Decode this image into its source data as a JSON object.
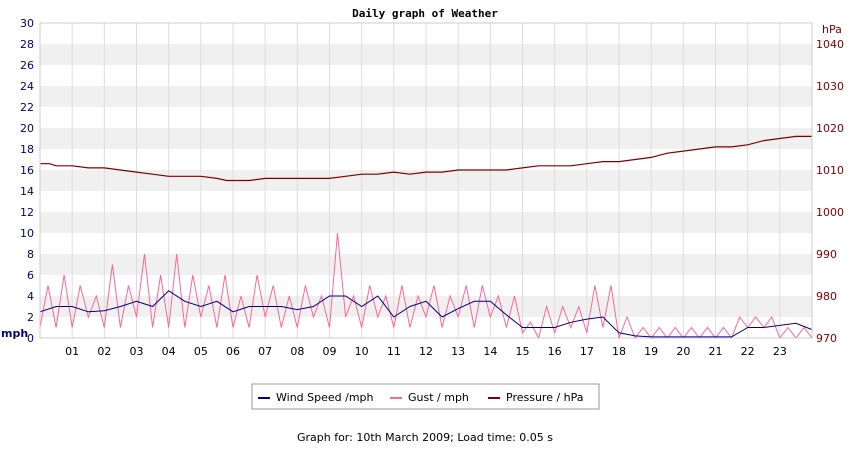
{
  "chart_data": {
    "type": "line",
    "title": "Daily graph of Weather",
    "y_left": {
      "label": "mph",
      "ylim": [
        0,
        30
      ],
      "ticks": [
        0,
        2,
        4,
        6,
        8,
        10,
        12,
        14,
        16,
        18,
        20,
        22,
        24,
        26,
        28,
        30
      ],
      "color": "#000080"
    },
    "y_right": {
      "label": "hPa",
      "ylim": [
        970,
        1045
      ],
      "ticks": [
        970,
        980,
        990,
        1000,
        1010,
        1020,
        1030,
        1040
      ],
      "color": "#800000"
    },
    "x": {
      "ticks": [
        "01",
        "02",
        "03",
        "04",
        "05",
        "06",
        "07",
        "08",
        "09",
        "10",
        "11",
        "12",
        "13",
        "14",
        "15",
        "16",
        "17",
        "18",
        "19",
        "20",
        "21",
        "22",
        "23"
      ],
      "xlim": [
        0,
        24
      ],
      "unit": "hour"
    },
    "grid": true,
    "legend_position": "bottom",
    "series": [
      {
        "name": "Wind Speed /mph",
        "axis": "left",
        "color": "#000080",
        "x": [
          0,
          0.5,
          1,
          1.5,
          2,
          2.5,
          3,
          3.5,
          4,
          4.5,
          5,
          5.5,
          6,
          6.5,
          7,
          7.5,
          8,
          8.5,
          9,
          9.5,
          10,
          10.5,
          11,
          11.5,
          12,
          12.5,
          13,
          13.5,
          14,
          14.5,
          15,
          15.5,
          16,
          16.5,
          17,
          17.5,
          18,
          18.5,
          19,
          19.5,
          20,
          20.5,
          21,
          21.5,
          22,
          22.5,
          23,
          23.5,
          24
        ],
        "values": [
          2.5,
          3,
          3,
          2.5,
          2.6,
          3,
          3.5,
          3,
          4.5,
          3.5,
          3,
          3.5,
          2.5,
          3,
          3,
          3,
          2.7,
          3,
          4,
          4,
          3,
          4,
          2,
          3,
          3.5,
          2,
          2.8,
          3.5,
          3.5,
          2.2,
          1,
          1,
          1,
          1.5,
          1.8,
          2,
          0.5,
          0.2,
          0.1,
          0.1,
          0.1,
          0.1,
          0.1,
          0.1,
          1,
          1,
          1.2,
          1.4,
          0.8
        ]
      },
      {
        "name": "Gust / mph",
        "axis": "left",
        "color": "#ff6699",
        "x": [
          0,
          0.25,
          0.5,
          0.75,
          1,
          1.25,
          1.5,
          1.75,
          2,
          2.25,
          2.5,
          2.75,
          3,
          3.25,
          3.5,
          3.75,
          4,
          4.25,
          4.5,
          4.75,
          5,
          5.25,
          5.5,
          5.75,
          6,
          6.25,
          6.5,
          6.75,
          7,
          7.25,
          7.5,
          7.75,
          8,
          8.25,
          8.5,
          8.75,
          9,
          9.25,
          9.5,
          9.75,
          10,
          10.25,
          10.5,
          10.75,
          11,
          11.25,
          11.5,
          11.75,
          12,
          12.25,
          12.5,
          12.75,
          13,
          13.25,
          13.5,
          13.75,
          14,
          14.25,
          14.5,
          14.75,
          15,
          15.25,
          15.5,
          15.75,
          16,
          16.25,
          16.5,
          16.75,
          17,
          17.25,
          17.5,
          17.75,
          18,
          18.25,
          18.5,
          18.75,
          19,
          19.25,
          19.5,
          19.75,
          20,
          20.25,
          20.5,
          20.75,
          21,
          21.25,
          21.5,
          21.75,
          22,
          22.25,
          22.5,
          22.75,
          23,
          23.25,
          23.5,
          23.75,
          24
        ],
        "values": [
          1,
          5,
          1,
          6,
          1,
          5,
          2,
          4,
          1,
          7,
          1,
          5,
          2,
          8,
          1,
          6,
          1,
          8,
          1,
          6,
          2,
          5,
          1,
          6,
          1,
          4,
          1,
          6,
          2,
          5,
          1,
          4,
          1,
          5,
          2,
          4,
          1,
          10,
          2,
          4,
          1,
          5,
          2,
          4,
          1,
          5,
          1,
          4,
          2,
          5,
          1,
          4,
          2,
          5,
          1,
          5,
          2,
          4,
          1,
          4,
          0.5,
          1.5,
          0,
          3,
          0.5,
          3,
          1,
          3,
          0.5,
          5,
          1,
          5,
          0,
          2,
          0,
          1,
          0,
          1,
          0,
          1,
          0,
          1,
          0,
          1,
          0,
          1,
          0,
          2,
          1,
          2,
          1,
          2,
          0,
          1,
          0,
          1,
          0
        ]
      },
      {
        "name": "Pressure / hPa",
        "axis": "right",
        "color": "#800000",
        "x": [
          0,
          0.3,
          0.5,
          1,
          1.5,
          2,
          2.5,
          3,
          3.5,
          4,
          4.5,
          5,
          5.5,
          5.8,
          6,
          6.5,
          7,
          7.5,
          8,
          8.5,
          9,
          9.5,
          10,
          10.5,
          11,
          11.5,
          12,
          12.5,
          13,
          13.5,
          14,
          14.5,
          15,
          15.5,
          16,
          16.5,
          17,
          17.5,
          18,
          18.5,
          19,
          19.5,
          20,
          20.5,
          21,
          21.5,
          22,
          22.5,
          23,
          23.5,
          24
        ],
        "values": [
          1011.5,
          1011.5,
          1011,
          1011,
          1010.5,
          1010.5,
          1010,
          1009.5,
          1009,
          1008.5,
          1008.5,
          1008.5,
          1008,
          1007.5,
          1007.5,
          1007.5,
          1008,
          1008,
          1008,
          1008,
          1008,
          1008.5,
          1009,
          1009,
          1009.5,
          1009,
          1009.5,
          1009.5,
          1010,
          1010,
          1010,
          1010,
          1010.5,
          1011,
          1011,
          1011,
          1011.5,
          1012,
          1012,
          1012.5,
          1013,
          1014,
          1014.5,
          1015,
          1015.5,
          1015.5,
          1016,
          1017,
          1017.5,
          1018,
          1018
        ]
      }
    ]
  },
  "footer": {
    "text": "Graph for: 10th March 2009; Load time: 0.05 s"
  }
}
